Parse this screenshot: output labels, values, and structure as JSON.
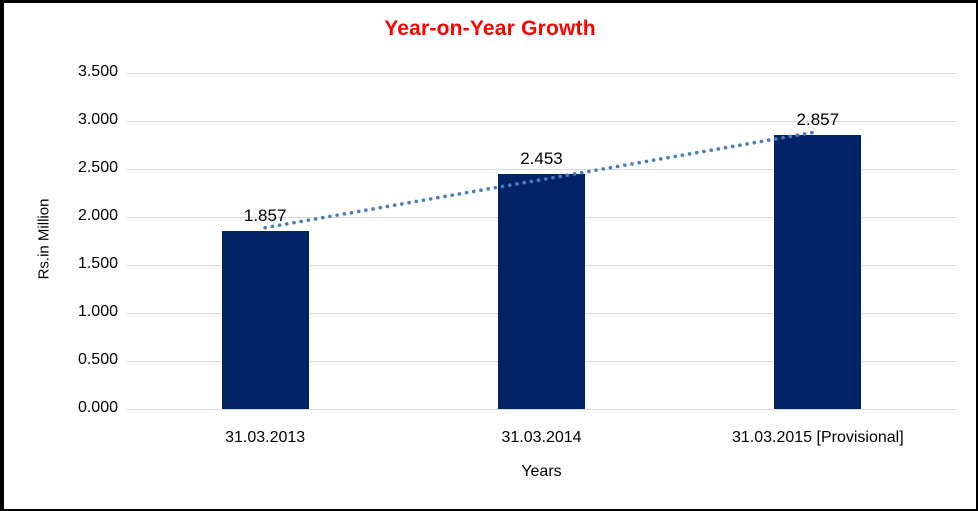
{
  "frame": {
    "background": "#ffffff",
    "border_color": "#000000"
  },
  "chart_data": {
    "type": "bar",
    "title": "Year-on-Year Growth",
    "title_color": "#ff0000",
    "xlabel": "Years",
    "ylabel": "Rs.in Million",
    "categories": [
      "31.03.2013",
      "31.03.2014",
      "31.03.2015 [Provisional]"
    ],
    "values": [
      1.857,
      2.453,
      2.857
    ],
    "data_labels": [
      "1.857",
      "2.453",
      "2.857"
    ],
    "bar_color": "#022366",
    "ylim": [
      0,
      3.5
    ],
    "ytick_step": 0.5,
    "ytick_labels": [
      "0.000",
      "0.500",
      "1.000",
      "1.500",
      "2.000",
      "2.500",
      "3.000",
      "3.500"
    ],
    "gridline_color": "#d9d9d9",
    "grid": "horizontal",
    "legend": "none",
    "trendline": {
      "type": "linear",
      "style": "dotted",
      "color": "#4a7ebb",
      "start_value": 1.889,
      "end_value": 2.889
    }
  }
}
